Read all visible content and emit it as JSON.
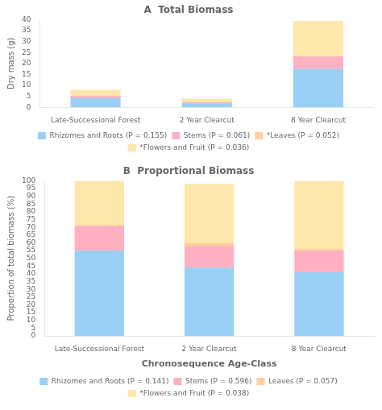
{
  "chart_data": [
    {
      "type": "bar",
      "stacked": true,
      "title": "A  Total Biomass",
      "categories": [
        "Late-Successional Forest",
        "2 Year Clearcut",
        "8 Year Clearcut"
      ],
      "series": [
        {
          "name": "Rhizomes and Roots (P = 0.155)",
          "values": [
            4.2,
            1.8,
            17.5
          ]
        },
        {
          "name": "Stems (P = 0.061)",
          "values": [
            0.9,
            0.5,
            5.7
          ]
        },
        {
          "name": "*Leaves (P = 0.052)",
          "values": [
            0.0,
            0.0,
            0.0
          ]
        },
        {
          "name": "*Flowers and Fruit (P = 0.036)",
          "values": [
            2.9,
            1.6,
            16.2
          ]
        }
      ],
      "ylabel": "Dry mass (g)",
      "ylim": [
        0,
        40
      ],
      "yticks": [
        0,
        5,
        10,
        15,
        20,
        25,
        30,
        35,
        40
      ],
      "grid": false,
      "legend": "bottom"
    },
    {
      "type": "bar",
      "stacked": true,
      "title": "B  Proportional Biomass",
      "categories": [
        "Late-Successional Forest",
        "2 Year Clearcut",
        "8 Year Clearcut"
      ],
      "series": [
        {
          "name": "Rhizomes and Roots (P = 0.141)",
          "values": [
            55,
            44,
            41
          ]
        },
        {
          "name": "Stems (P = 0.596)",
          "values": [
            16,
            14,
            14
          ]
        },
        {
          "name": "Leaves (P = 0.057)",
          "values": [
            0,
            2,
            1
          ]
        },
        {
          "name": "*Flowers and Fruit (P = 0.038)",
          "values": [
            29,
            38,
            44
          ]
        }
      ],
      "xlabel": "Chronosequence Age-Class",
      "ylabel": "Proportion of total biomass (%)",
      "ylim": [
        0,
        100
      ],
      "yticks": [
        0,
        5,
        10,
        15,
        20,
        25,
        30,
        35,
        40,
        45,
        50,
        55,
        60,
        65,
        70,
        75,
        80,
        85,
        90,
        95,
        100
      ],
      "grid": false,
      "legend": "bottom"
    }
  ]
}
